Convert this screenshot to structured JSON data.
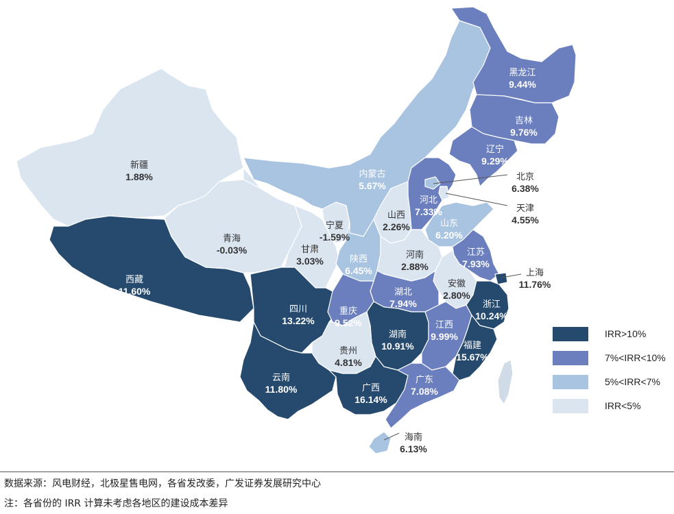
{
  "colors": {
    "high": "#264a6e",
    "mid": "#6b7fbf",
    "low": "#a9c4e1",
    "none": "#dbe5f0",
    "island": "#cfdbe6"
  },
  "legend": [
    {
      "label": "IRR>10%",
      "color": "#264a6e"
    },
    {
      "label": "7%<IRR<10%",
      "color": "#6b7fbf"
    },
    {
      "label": "5%<IRR<7%",
      "color": "#a9c4e1"
    },
    {
      "label": "IRR<5%",
      "color": "#dbe5f0"
    }
  ],
  "provinces": [
    {
      "name": "黑龙江",
      "value": "9.44%",
      "tier": "mid"
    },
    {
      "name": "吉林",
      "value": "9.76%",
      "tier": "mid"
    },
    {
      "name": "辽宁",
      "value": "9.29%",
      "tier": "mid"
    },
    {
      "name": "北京",
      "value": "6.38%",
      "tier": "low"
    },
    {
      "name": "天津",
      "value": "4.55%",
      "tier": "none"
    },
    {
      "name": "河北",
      "value": "7.33%",
      "tier": "mid"
    },
    {
      "name": "山西",
      "value": "2.26%",
      "tier": "none"
    },
    {
      "name": "山东",
      "value": "6.20%",
      "tier": "low"
    },
    {
      "name": "内蒙古",
      "value": "5.67%",
      "tier": "low"
    },
    {
      "name": "新疆",
      "value": "1.88%",
      "tier": "none"
    },
    {
      "name": "青海",
      "value": "-0.03%",
      "tier": "none"
    },
    {
      "name": "宁夏",
      "value": "-1.59%",
      "tier": "none"
    },
    {
      "name": "甘肃",
      "value": "3.03%",
      "tier": "none"
    },
    {
      "name": "陕西",
      "value": "6.45%",
      "tier": "low"
    },
    {
      "name": "河南",
      "value": "2.88%",
      "tier": "none"
    },
    {
      "name": "江苏",
      "value": "7.93%",
      "tier": "mid"
    },
    {
      "name": "上海",
      "value": "11.76%",
      "tier": "high"
    },
    {
      "name": "安徽",
      "value": "2.80%",
      "tier": "none"
    },
    {
      "name": "浙江",
      "value": "10.24%",
      "tier": "high"
    },
    {
      "name": "湖北",
      "value": "7.94%",
      "tier": "mid"
    },
    {
      "name": "西藏",
      "value": "11.60%",
      "tier": "high"
    },
    {
      "name": "四川",
      "value": "13.22%",
      "tier": "high"
    },
    {
      "name": "重庆",
      "value": "9.52%",
      "tier": "mid"
    },
    {
      "name": "江西",
      "value": "9.99%",
      "tier": "mid"
    },
    {
      "name": "湖南",
      "value": "10.91%",
      "tier": "high"
    },
    {
      "name": "福建",
      "value": "15.67%",
      "tier": "high"
    },
    {
      "name": "贵州",
      "value": "4.81%",
      "tier": "none"
    },
    {
      "name": "云南",
      "value": "11.80%",
      "tier": "high"
    },
    {
      "name": "广西",
      "value": "16.14%",
      "tier": "high"
    },
    {
      "name": "广东",
      "value": "7.08%",
      "tier": "mid"
    },
    {
      "name": "海南",
      "value": "6.13%",
      "tier": "low"
    }
  ],
  "notes": {
    "source": "数据来源：风电财经，北极星售电网，各省发改委，广发证券发展研究中心",
    "remark": "注：各省份的 IRR 计算未考虑各地区的建设成本差异"
  }
}
